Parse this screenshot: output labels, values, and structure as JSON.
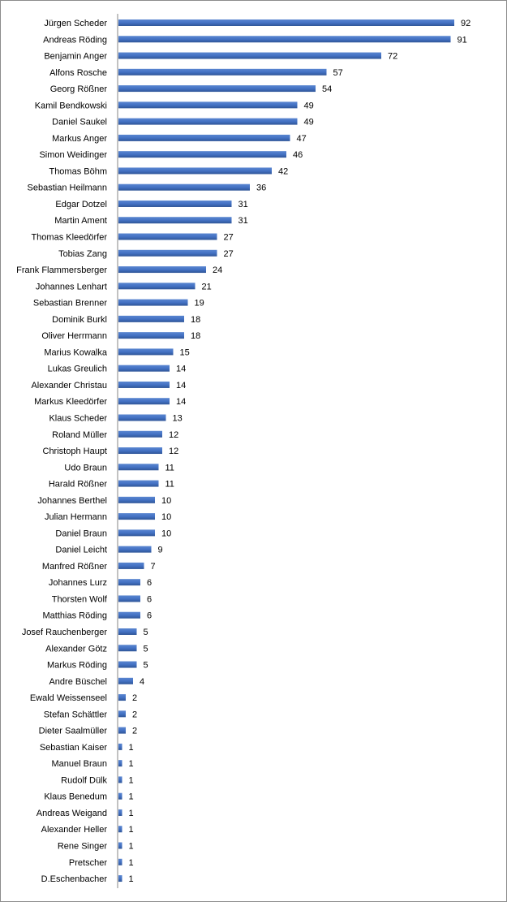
{
  "chart_data": {
    "type": "bar",
    "orientation": "horizontal",
    "categories": [
      "Jürgen Scheder",
      "Andreas Röding",
      "Benjamin Anger",
      "Alfons Rosche",
      "Georg Rößner",
      "Kamil Bendkowski",
      "Daniel Saukel",
      "Markus Anger",
      "Simon Weidinger",
      "Thomas Böhm",
      "Sebastian Heilmann",
      "Edgar Dotzel",
      "Martin Ament",
      "Thomas Kleedörfer",
      "Tobias Zang",
      "Frank Flammersberger",
      "Johannes Lenhart",
      "Sebastian Brenner",
      "Dominik Burkl",
      "Oliver Herrmann",
      "Marius Kowalka",
      "Lukas Greulich",
      "Alexander Christau",
      "Markus Kleedörfer",
      "Klaus Scheder",
      "Roland Müller",
      "Christoph Haupt",
      "Udo Braun",
      "Harald Rößner",
      "Johannes Berthel",
      "Julian Hermann",
      "Daniel Braun",
      "Daniel Leicht",
      "Manfred Rößner",
      "Johannes Lurz",
      "Thorsten Wolf",
      "Matthias Röding",
      "Josef Rauchenberger",
      "Alexander Götz",
      "Markus Röding",
      "Andre Büschel",
      "Ewald Weissenseel",
      "Stefan Schättler",
      "Dieter Saalmüller",
      "Sebastian Kaiser",
      "Manuel Braun",
      "Rudolf Dülk",
      "Klaus Benedum",
      "Andreas Weigand",
      "Alexander Heller",
      "Rene Singer",
      "Pretscher",
      "D.Eschenbacher"
    ],
    "values": [
      92,
      91,
      72,
      57,
      54,
      49,
      49,
      47,
      46,
      42,
      36,
      31,
      31,
      27,
      27,
      24,
      21,
      19,
      18,
      18,
      15,
      14,
      14,
      14,
      13,
      12,
      12,
      11,
      11,
      10,
      10,
      10,
      9,
      7,
      6,
      6,
      6,
      5,
      5,
      5,
      4,
      2,
      2,
      2,
      1,
      1,
      1,
      1,
      1,
      1,
      1,
      1,
      1
    ],
    "xlim": [
      0,
      100
    ],
    "data_labels": true,
    "grid": false,
    "legend": "none",
    "bar_color": "#4472c4",
    "axis_color": "#868686"
  }
}
